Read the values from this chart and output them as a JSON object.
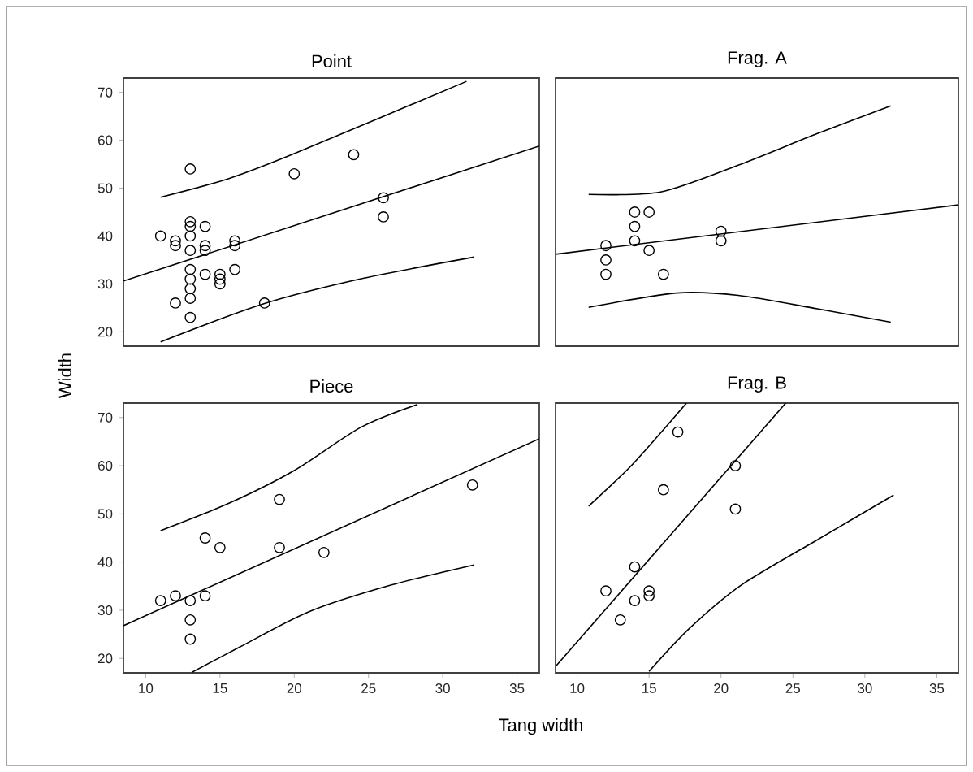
{
  "chart_data": [
    {
      "type": "scatter",
      "title": "Point",
      "ylabel": "Width",
      "xlim": [
        8.5,
        36.5
      ],
      "ylim": [
        17,
        73
      ],
      "xticks": [
        10,
        15,
        20,
        25,
        30,
        35
      ],
      "yticks": [
        20,
        30,
        40,
        50,
        60,
        70
      ],
      "tick_labels": "y",
      "grid": false,
      "series": [
        {
          "marker": "circle",
          "color": "#000000",
          "x": [
            11,
            12,
            12,
            13,
            13,
            13,
            13,
            13,
            13,
            13,
            13,
            13,
            13,
            12,
            14,
            14,
            14,
            14,
            15,
            15,
            15,
            16,
            16,
            16,
            18,
            20,
            24,
            26,
            26
          ],
          "values": [
            40,
            39,
            38,
            54,
            43,
            42,
            40,
            37,
            33,
            31,
            29,
            27,
            23,
            26,
            42,
            38,
            37,
            32,
            32,
            31,
            30,
            39,
            38,
            33,
            26,
            53,
            57,
            48,
            44
          ]
        },
        {
          "type": "line",
          "marker": "none",
          "color": "#000000",
          "x": [
            8.5,
            36.5
          ],
          "values": [
            30.6,
            58.8
          ]
        },
        {
          "type": "line",
          "marker": "none",
          "color": "#000000",
          "x": [
            11,
            15.6,
            20,
            31.6
          ],
          "values": [
            48.1,
            52,
            57.2,
            72.3
          ]
        },
        {
          "type": "line",
          "marker": "none",
          "color": "#000000",
          "x": [
            11,
            18,
            24.7,
            32.1
          ],
          "values": [
            17.9,
            25.9,
            31.2,
            35.6
          ]
        }
      ]
    },
    {
      "type": "scatter",
      "title": "Frag. A",
      "xlim": [
        8.5,
        36.5
      ],
      "ylim": [
        17,
        73
      ],
      "xticks": [
        10,
        15,
        20,
        25,
        30,
        35
      ],
      "yticks": [
        20,
        30,
        40,
        50,
        60,
        70
      ],
      "tick_labels": false,
      "grid": false,
      "series": [
        {
          "marker": "circle",
          "color": "#000000",
          "x": [
            12,
            12,
            12,
            14,
            14,
            14,
            15,
            15,
            16,
            20,
            20
          ],
          "values": [
            38,
            35,
            32,
            45,
            42,
            39,
            45,
            37,
            32,
            41,
            39
          ]
        },
        {
          "type": "line",
          "marker": "none",
          "color": "#000000",
          "x": [
            8.5,
            36.5
          ],
          "values": [
            36.2,
            46.5
          ]
        },
        {
          "type": "line",
          "marker": "none",
          "color": "#000000",
          "x": [
            10.8,
            15.8,
            21.2,
            26.7,
            31.8
          ],
          "values": [
            48.7,
            49.2,
            54.8,
            61.4,
            67.2
          ]
        },
        {
          "type": "line",
          "marker": "none",
          "color": "#000000",
          "x": [
            10.8,
            16.9,
            21.2,
            26.7,
            31.8
          ],
          "values": [
            25.1,
            28.1,
            27.6,
            24.8,
            22
          ]
        }
      ]
    },
    {
      "type": "scatter",
      "title": "Piece",
      "xlabel": "Tang width",
      "xlim": [
        8.5,
        36.5
      ],
      "ylim": [
        17,
        73
      ],
      "xticks": [
        10,
        15,
        20,
        25,
        30,
        35
      ],
      "yticks": [
        20,
        30,
        40,
        50,
        60,
        70
      ],
      "grid": false,
      "series": [
        {
          "marker": "circle",
          "color": "#000000",
          "x": [
            11,
            12,
            13,
            13,
            13,
            14,
            14,
            15,
            19,
            19,
            22,
            32
          ],
          "values": [
            32,
            33,
            32,
            28,
            24,
            33,
            45,
            43,
            53,
            43,
            42,
            56
          ]
        },
        {
          "type": "line",
          "marker": "none",
          "color": "#000000",
          "x": [
            8.5,
            36.5
          ],
          "values": [
            26.8,
            65.6
          ]
        },
        {
          "type": "line",
          "marker": "none",
          "color": "#000000",
          "x": [
            11,
            15.6,
            20,
            24.5,
            28.3
          ],
          "values": [
            46.5,
            52.2,
            59,
            68,
            72.7
          ]
        },
        {
          "type": "line",
          "marker": "none",
          "color": "#000000",
          "x": [
            13.1,
            16.3,
            21,
            26.5,
            32.1
          ],
          "values": [
            17.1,
            22.3,
            29.7,
            35.2,
            39.4
          ]
        }
      ]
    },
    {
      "type": "scatter",
      "title": "Frag. B",
      "xlim": [
        8.5,
        36.5
      ],
      "ylim": [
        17,
        73
      ],
      "xticks": [
        10,
        15,
        20,
        25,
        30,
        35
      ],
      "yticks": [
        20,
        30,
        40,
        50,
        60,
        70
      ],
      "tick_labels": "x",
      "grid": false,
      "series": [
        {
          "marker": "circle",
          "color": "#000000",
          "x": [
            12,
            13,
            14,
            14,
            15,
            15,
            16,
            17,
            21,
            21
          ],
          "values": [
            34,
            28,
            39,
            32,
            34,
            33,
            55,
            67,
            60,
            51
          ]
        },
        {
          "type": "line",
          "marker": "none",
          "color": "#000000",
          "x": [
            8.5,
            24.5
          ],
          "values": [
            18.3,
            73
          ]
        },
        {
          "type": "line",
          "marker": "none",
          "color": "#000000",
          "x": [
            10.8,
            13.6,
            15.8,
            17.6
          ],
          "values": [
            51.6,
            59.5,
            66.8,
            73
          ]
        },
        {
          "type": "line",
          "marker": "none",
          "color": "#000000",
          "x": [
            15,
            17.8,
            21.4,
            26.8,
            32
          ],
          "values": [
            17.3,
            26.2,
            35.2,
            44.8,
            53.9
          ]
        }
      ]
    }
  ]
}
